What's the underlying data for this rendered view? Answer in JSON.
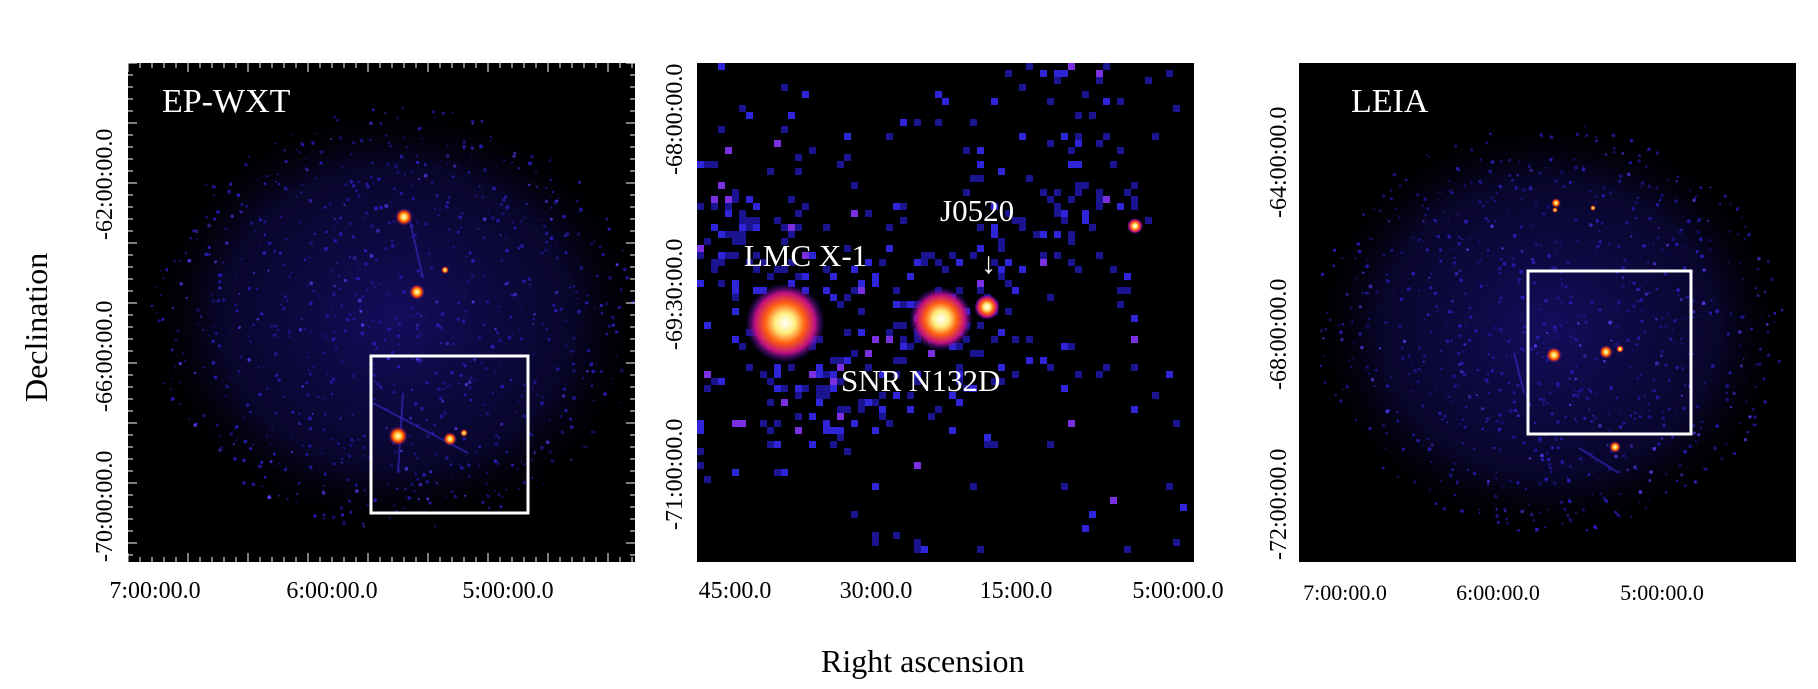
{
  "figure": {
    "panels": [
      {
        "label": "EP-WXT",
        "y_ticks": [
          "-62:00:00.0",
          "-66:00:00.0",
          "-70:00:00.0"
        ],
        "x_ticks": [
          "7:00:00.0",
          "6:00:00.0",
          "5:00:00.0"
        ]
      },
      {
        "label": "",
        "y_ticks": [
          "-68:00:00.0",
          "-69:30:00.0",
          "-71:00:00.0"
        ],
        "x_ticks": [
          "45:00.0",
          "30:00.0",
          "15:00.0",
          "5:00:00.0"
        ],
        "sources": {
          "lmc": "LMC X-1",
          "j0520": "J0520",
          "snr": "SNR N132D"
        },
        "arrow": "↓"
      },
      {
        "label": "LEIA",
        "y_ticks": [
          "-64:00:00.0",
          "-68:00:00.0",
          "-72:00:00.0"
        ],
        "x_ticks": [
          "7:00:00.0",
          "6:00:00.0",
          "5:00:00.0"
        ]
      }
    ],
    "ylabel": "Declination",
    "xlabel": "Right ascension",
    "colors": {
      "background": "#000000",
      "noise": "#2a20c8",
      "core": "#fff6a0",
      "halo": "#ff4a00",
      "box": "#ffffff"
    }
  }
}
